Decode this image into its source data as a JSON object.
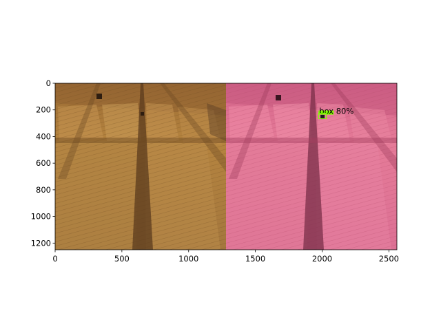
{
  "figure": {
    "x_ticks": [
      "0",
      "500",
      "1000",
      "1500",
      "2000",
      "2500"
    ],
    "y_ticks": [
      "0",
      "200",
      "400",
      "600",
      "800",
      "1000",
      "1200"
    ],
    "x_tick_values": [
      0,
      500,
      1000,
      1500,
      2000,
      2500
    ],
    "y_tick_values": [
      0,
      200,
      400,
      600,
      800,
      1000,
      1200
    ],
    "x_extent": [
      0,
      2560
    ],
    "y_extent": [
      1250,
      0
    ],
    "image_split_x": 1280,
    "left_panel": {
      "content": "wheat field photograph (natural colour)",
      "base_color": "#a8783a"
    },
    "right_panel": {
      "content": "wheat field photograph (pink false-colour)",
      "base_color": "#e0718f"
    },
    "detection": {
      "label": "box 80%",
      "box_color": "#7fff00",
      "center_data": [
        2003,
        245
      ],
      "size_data": [
        60,
        40
      ]
    }
  }
}
